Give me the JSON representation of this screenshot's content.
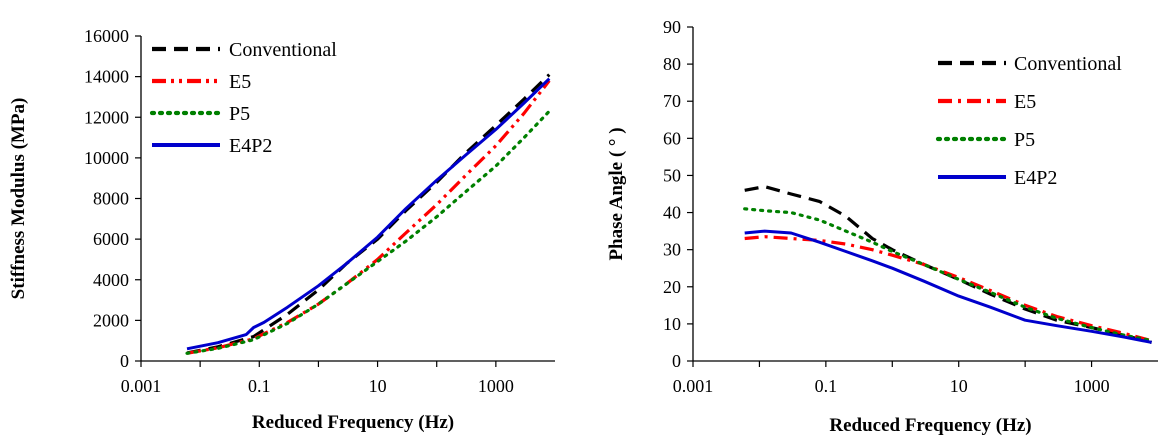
{
  "chart_data": [
    {
      "type": "line",
      "xscale": "log",
      "xlabel": "Reduced Frequency (Hz)",
      "ylabel": "Stiffness Modulus (MPa)",
      "xlim": [
        0.001,
        10000
      ],
      "ylim": [
        0,
        16000
      ],
      "xticks": [
        0.001,
        0.1,
        10,
        1000
      ],
      "xtick_labels": [
        "0.001",
        "0.1",
        "10",
        "1000"
      ],
      "yticks": [
        0,
        2000,
        4000,
        6000,
        8000,
        10000,
        12000,
        14000,
        16000
      ],
      "ytick_labels": [
        "0",
        "2000",
        "4000",
        "6000",
        "8000",
        "10000",
        "12000",
        "14000",
        "16000"
      ],
      "legend_position": "top-left",
      "series": [
        {
          "name": "Conventional",
          "color": "#000000",
          "style": "dash",
          "x": [
            0.006,
            0.02,
            0.08,
            0.3,
            1,
            3,
            10,
            30,
            100,
            300,
            1000,
            3000,
            8000
          ],
          "y": [
            400,
            700,
            1200,
            2300,
            3500,
            4800,
            6000,
            7400,
            8800,
            10200,
            11600,
            12900,
            14100
          ]
        },
        {
          "name": "E5",
          "color": "#ff0000",
          "style": "dashdotdot",
          "x": [
            0.006,
            0.02,
            0.08,
            0.3,
            1,
            3,
            10,
            30,
            100,
            300,
            1000,
            3000,
            8000
          ],
          "y": [
            380,
            650,
            1100,
            1900,
            2800,
            3800,
            5000,
            6300,
            7700,
            9100,
            10600,
            12200,
            13800
          ]
        },
        {
          "name": "P5",
          "color": "#008000",
          "style": "dot",
          "x": [
            0.006,
            0.02,
            0.08,
            0.3,
            1,
            3,
            10,
            30,
            100,
            300,
            1000,
            3000,
            8000
          ],
          "y": [
            380,
            620,
            1050,
            1850,
            2800,
            3800,
            4900,
            5900,
            7100,
            8300,
            9600,
            11000,
            12300
          ]
        },
        {
          "name": "E4P2",
          "color": "#0000cc",
          "style": "solid",
          "x": [
            0.006,
            0.02,
            0.06,
            0.08,
            0.12,
            0.3,
            1,
            3,
            10,
            30,
            100,
            300,
            1000,
            3000,
            8000
          ],
          "y": [
            600,
            900,
            1300,
            1650,
            1900,
            2650,
            3700,
            4800,
            6100,
            7500,
            8900,
            10100,
            11400,
            12700,
            13900
          ]
        }
      ]
    },
    {
      "type": "line",
      "xscale": "log",
      "xlabel": "Reduced Frequency (Hz)",
      "ylabel": "Phase Angle ( ° )",
      "xlim": [
        0.001,
        10000
      ],
      "ylim": [
        0,
        90
      ],
      "xticks": [
        0.001,
        0.1,
        10,
        1000
      ],
      "xtick_labels": [
        "0.001",
        "0.1",
        "10",
        "1000"
      ],
      "yticks": [
        0,
        10,
        20,
        30,
        40,
        50,
        60,
        70,
        80,
        90
      ],
      "ytick_labels": [
        "0",
        "10",
        "20",
        "30",
        "40",
        "50",
        "60",
        "70",
        "80",
        "90"
      ],
      "legend_position": "top-right",
      "series": [
        {
          "name": "Conventional",
          "color": "#000000",
          "style": "dash",
          "x": [
            0.006,
            0.012,
            0.03,
            0.08,
            0.2,
            0.5,
            1,
            3,
            10,
            30,
            100,
            300,
            1000,
            3000,
            8000
          ],
          "y": [
            46,
            47,
            45,
            43,
            39,
            33,
            30,
            26,
            22,
            18,
            14,
            11,
            9,
            7,
            5
          ]
        },
        {
          "name": "E5",
          "color": "#ff0000",
          "style": "dashdot",
          "x": [
            0.006,
            0.012,
            0.03,
            0.08,
            0.2,
            0.5,
            1,
            3,
            10,
            30,
            100,
            300,
            1000,
            3000,
            8000
          ],
          "y": [
            33,
            33.5,
            33,
            32.5,
            31.5,
            30,
            28.5,
            26,
            22.5,
            19,
            15,
            12,
            9.5,
            7.5,
            5.5
          ]
        },
        {
          "name": "P5",
          "color": "#008000",
          "style": "dot",
          "x": [
            0.006,
            0.012,
            0.03,
            0.08,
            0.2,
            0.5,
            1,
            3,
            10,
            30,
            100,
            300,
            1000,
            3000,
            8000
          ],
          "y": [
            41,
            40.5,
            40,
            38,
            35,
            32,
            29.5,
            26,
            22,
            18.5,
            14.5,
            11.5,
            9,
            7,
            5.5
          ]
        },
        {
          "name": "E4P2",
          "color": "#0000cc",
          "style": "solid",
          "x": [
            0.006,
            0.012,
            0.03,
            0.08,
            0.2,
            0.5,
            1,
            3,
            10,
            30,
            100,
            300,
            1000,
            3000,
            8000
          ],
          "y": [
            34.5,
            35,
            34.5,
            32,
            29.5,
            27,
            25,
            21.5,
            17.5,
            14.5,
            11,
            9.5,
            8,
            6.5,
            5
          ]
        }
      ]
    }
  ]
}
